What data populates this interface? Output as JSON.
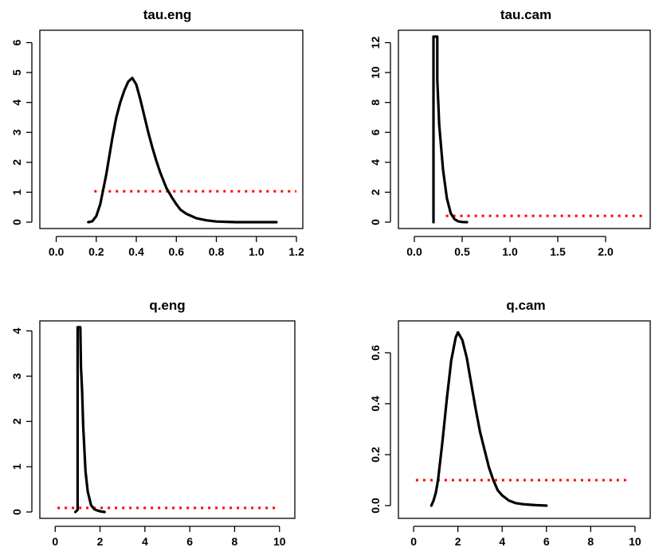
{
  "chart_data": [
    {
      "type": "line",
      "title": "tau.eng",
      "xlabel": "",
      "ylabel": "",
      "xlim": [
        -0.05,
        1.2
      ],
      "ylim": [
        0,
        6.2
      ],
      "xticks": [
        0.0,
        0.2,
        0.4,
        0.6,
        0.8,
        1.0,
        1.2
      ],
      "xtick_labels": [
        "0.0",
        "0.2",
        "0.4",
        "0.6",
        "0.8",
        "1.0",
        "1.2"
      ],
      "yticks": [
        0,
        1,
        2,
        3,
        4,
        5,
        6
      ],
      "ytick_labels": [
        "0",
        "1",
        "2",
        "3",
        "4",
        "5",
        "6"
      ],
      "grid": false,
      "series": [
        {
          "role": "posterior density",
          "color": "#000000",
          "x": [
            0.16,
            0.18,
            0.2,
            0.22,
            0.25,
            0.28,
            0.3,
            0.32,
            0.34,
            0.36,
            0.38,
            0.4,
            0.42,
            0.44,
            0.46,
            0.48,
            0.5,
            0.52,
            0.55,
            0.58,
            0.6,
            0.62,
            0.65,
            0.7,
            0.75,
            0.8,
            0.85,
            0.9,
            1.0,
            1.1
          ],
          "y": [
            0.0,
            0.03,
            0.2,
            0.6,
            1.6,
            2.8,
            3.5,
            4.0,
            4.4,
            4.7,
            4.82,
            4.6,
            4.1,
            3.55,
            3.0,
            2.5,
            2.05,
            1.65,
            1.15,
            0.8,
            0.6,
            0.42,
            0.28,
            0.13,
            0.06,
            0.02,
            0.01,
            0.0,
            0.0,
            0.0
          ]
        },
        {
          "role": "prior density",
          "color": "#ff0000",
          "style": "dotted",
          "x": [
            0.19,
            1.2
          ],
          "y": [
            1.03,
            1.03
          ]
        }
      ]
    },
    {
      "type": "line",
      "title": "tau.cam",
      "xlabel": "",
      "ylabel": "",
      "xlim": [
        -0.1,
        2.4
      ],
      "ylim": [
        0,
        12.4
      ],
      "xticks": [
        0.0,
        0.5,
        1.0,
        1.5,
        2.0
      ],
      "xtick_labels": [
        "0.0",
        "0.5",
        "1.0",
        "1.5",
        "2.0"
      ],
      "yticks": [
        0,
        2,
        4,
        6,
        8,
        10,
        12
      ],
      "ytick_labels": [
        "0",
        "2",
        "4",
        "6",
        "8",
        "10",
        "12"
      ],
      "grid": false,
      "series": [
        {
          "role": "posterior density",
          "color": "#000000",
          "x": [
            0.2,
            0.2,
            0.2,
            0.22,
            0.24,
            0.24,
            0.26,
            0.3,
            0.34,
            0.38,
            0.42,
            0.46,
            0.5,
            0.55
          ],
          "y": [
            0.0,
            10.0,
            12.4,
            12.4,
            12.4,
            9.5,
            6.5,
            3.5,
            1.6,
            0.6,
            0.2,
            0.05,
            0.01,
            0.0
          ]
        },
        {
          "role": "prior density",
          "color": "#ff0000",
          "style": "dotted",
          "x": [
            0.33,
            2.4
          ],
          "y": [
            0.42,
            0.42
          ]
        }
      ]
    },
    {
      "type": "line",
      "title": "q.eng",
      "xlabel": "",
      "ylabel": "",
      "xlim": [
        -0.4,
        10.4
      ],
      "ylim": [
        0,
        4.08
      ],
      "xticks": [
        0,
        2,
        4,
        6,
        8,
        10
      ],
      "xtick_labels": [
        "0",
        "2",
        "4",
        "6",
        "8",
        "10"
      ],
      "yticks": [
        0,
        1,
        2,
        3,
        4
      ],
      "ytick_labels": [
        "0",
        "1",
        "2",
        "3",
        "4"
      ],
      "grid": false,
      "series": [
        {
          "role": "posterior density",
          "color": "#000000",
          "x": [
            0.9,
            1.0,
            1.0,
            1.05,
            1.12,
            1.15,
            1.2,
            1.25,
            1.35,
            1.45,
            1.6,
            1.75,
            1.9,
            2.05,
            2.2
          ],
          "y": [
            0.0,
            0.05,
            4.08,
            4.08,
            4.08,
            3.2,
            2.7,
            1.9,
            0.9,
            0.45,
            0.15,
            0.06,
            0.03,
            0.01,
            0.0
          ]
        },
        {
          "role": "prior density",
          "color": "#ff0000",
          "style": "dotted",
          "x": [
            0.1,
            9.8
          ],
          "y": [
            0.09,
            0.09
          ]
        }
      ]
    },
    {
      "type": "line",
      "title": "q.cam",
      "xlabel": "",
      "ylabel": "",
      "xlim": [
        -0.4,
        10.4
      ],
      "ylim": [
        -0.025,
        0.7
      ],
      "xticks": [
        0,
        2,
        4,
        6,
        8,
        10
      ],
      "xtick_labels": [
        "0",
        "2",
        "4",
        "6",
        "8",
        "10"
      ],
      "yticks": [
        0.0,
        0.2,
        0.4,
        0.6
      ],
      "ytick_labels": [
        "0.0",
        "0.2",
        "0.4",
        "0.6"
      ],
      "grid": false,
      "series": [
        {
          "role": "posterior density",
          "color": "#000000",
          "x": [
            0.8,
            0.9,
            1.0,
            1.1,
            1.3,
            1.5,
            1.7,
            1.9,
            2.0,
            2.2,
            2.4,
            2.6,
            2.8,
            3.0,
            3.2,
            3.4,
            3.6,
            3.8,
            4.0,
            4.3,
            4.6,
            5.0,
            5.5,
            6.0
          ],
          "y": [
            0.0,
            0.02,
            0.05,
            0.1,
            0.25,
            0.42,
            0.57,
            0.66,
            0.68,
            0.65,
            0.58,
            0.48,
            0.38,
            0.29,
            0.22,
            0.15,
            0.1,
            0.06,
            0.04,
            0.02,
            0.01,
            0.005,
            0.002,
            0.0
          ]
        },
        {
          "role": "prior density",
          "color": "#ff0000",
          "style": "dotted",
          "x": [
            0.1,
            9.8
          ],
          "y": [
            0.1,
            0.1
          ]
        }
      ]
    }
  ]
}
